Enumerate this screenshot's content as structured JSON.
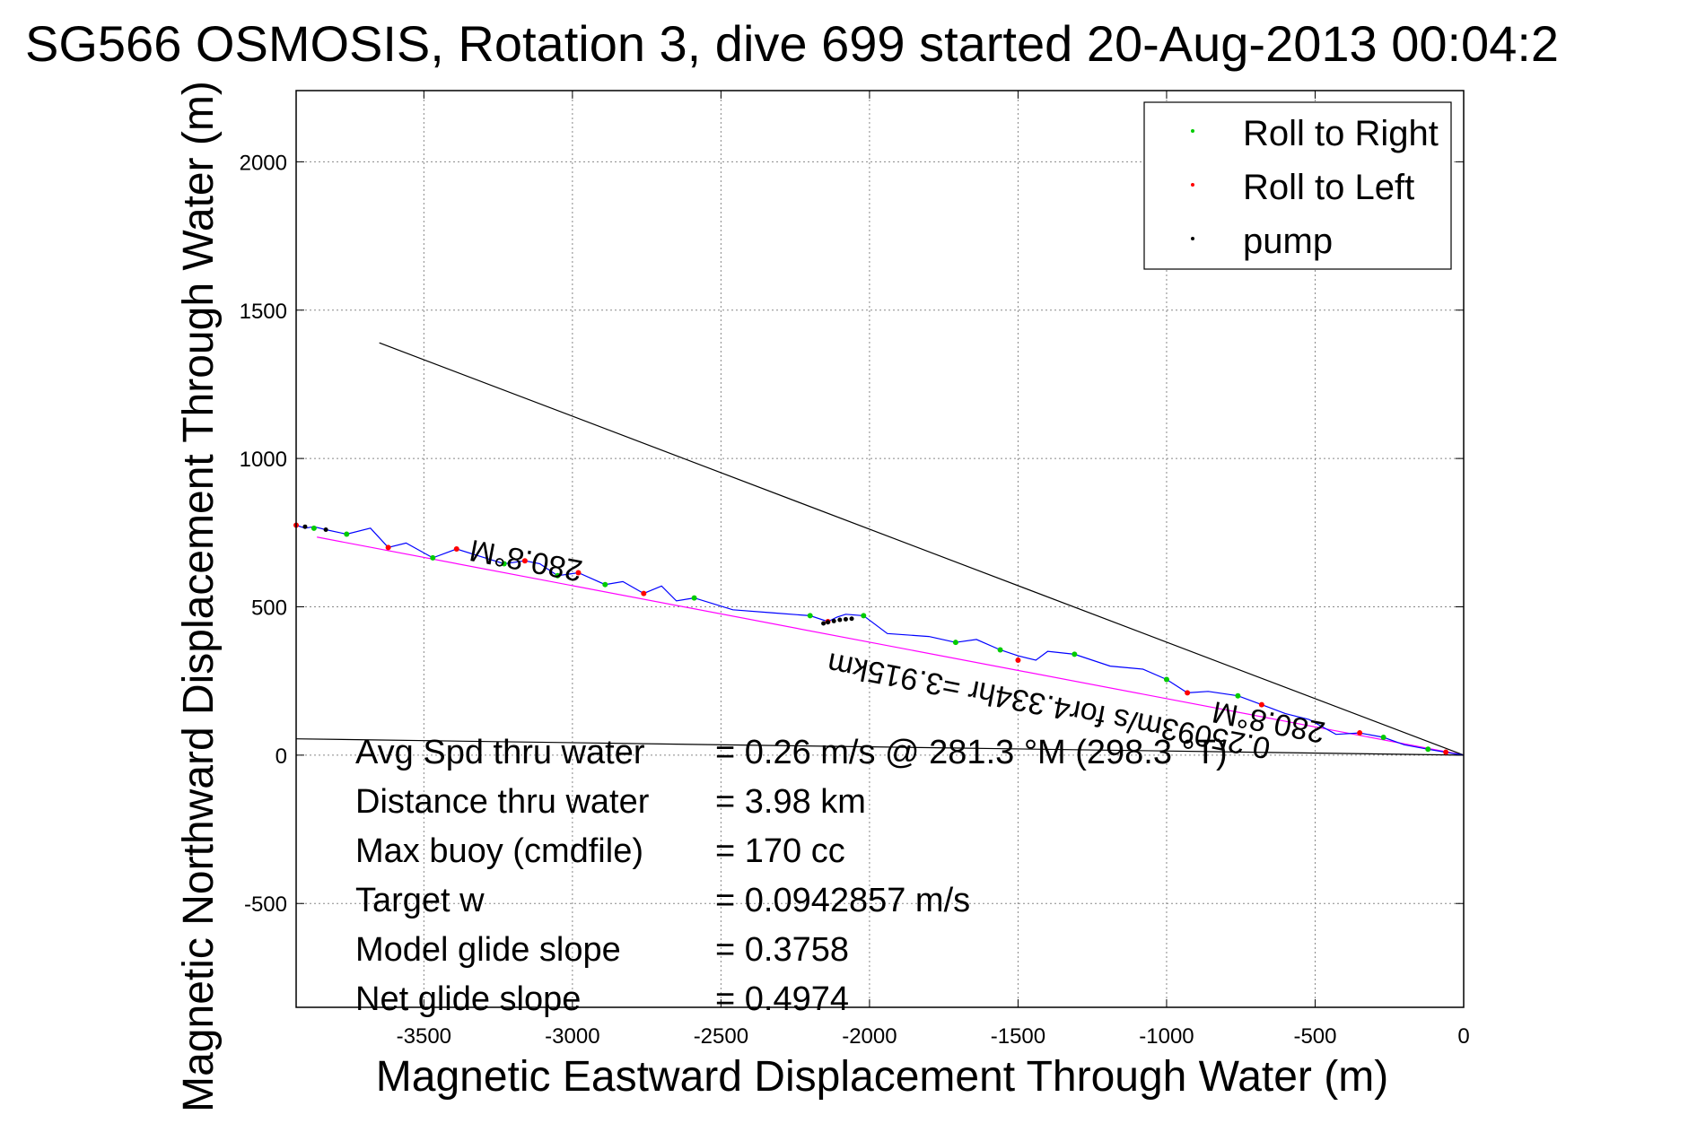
{
  "chart_data": {
    "type": "line",
    "title": "SG566 OSMOSIS, Rotation 3, dive 699 started 20-Aug-2013 00:04:2",
    "xlabel": "Magnetic Eastward Displacement Through Water (m)",
    "ylabel": "Magnetic Northward Displacement Through Water (m)",
    "xlim": [
      -3930,
      0
    ],
    "ylim": [
      -850,
      2240
    ],
    "xticks": [
      -3500,
      -3000,
      -2500,
      -2000,
      -1500,
      -1000,
      -500,
      0
    ],
    "xtick_labels": [
      "-3500",
      "-3000",
      "-2500",
      "-2000",
      "-1500",
      "-1000",
      "-500",
      "0"
    ],
    "yticks": [
      -500,
      0,
      500,
      1000,
      1500,
      2000
    ],
    "ytick_labels": [
      "-500",
      "0",
      "500",
      "1000",
      "1500",
      "2000"
    ],
    "grid": true,
    "legend_position": "top-right",
    "legend": [
      {
        "label": "Roll to Right",
        "color": "#00cc00"
      },
      {
        "label": "Roll to Left",
        "color": "#ff0000"
      },
      {
        "label": "pump",
        "color": "#000000"
      }
    ],
    "colors": {
      "track": "#0000ff",
      "net_heading_line": "#ff00ff",
      "reference_lines": "#000000",
      "roll_right": "#00cc00",
      "roll_left": "#ff0000",
      "pump": "#000000"
    },
    "series": [
      {
        "name": "track",
        "x": [
          0,
          -60,
          -120,
          -200,
          -270,
          -350,
          -430,
          -520,
          -600,
          -680,
          -760,
          -860,
          -930,
          -1000,
          -1080,
          -1190,
          -1310,
          -1400,
          -1440,
          -1500,
          -1560,
          -1640,
          -1710,
          -1800,
          -1940,
          -2020,
          -2080,
          -2110,
          -2140,
          -2200,
          -2330,
          -2460,
          -2590,
          -2650,
          -2700,
          -2760,
          -2830,
          -2890,
          -2980,
          -3050,
          -3110,
          -3160,
          -3230,
          -3310,
          -3390,
          -3470,
          -3560,
          -3620,
          -3680,
          -3760,
          -3830,
          -3870,
          -3900,
          -3930
        ],
        "y": [
          0,
          10,
          20,
          35,
          60,
          75,
          70,
          120,
          140,
          170,
          200,
          215,
          210,
          255,
          290,
          300,
          340,
          350,
          320,
          335,
          355,
          390,
          380,
          400,
          410,
          470,
          475,
          465,
          450,
          470,
          480,
          490,
          530,
          520,
          570,
          545,
          585,
          575,
          615,
          605,
          645,
          655,
          645,
          670,
          695,
          665,
          715,
          700,
          765,
          745,
          760,
          770,
          765,
          775
        ]
      },
      {
        "name": "Roll to Right",
        "x": [
          -120,
          -270,
          -760,
          -1000,
          -1310,
          -1560,
          -1710,
          -2020,
          -2200,
          -2590,
          -2890,
          -3050,
          -3230,
          -3470,
          -3760,
          -3870
        ],
        "y": [
          20,
          60,
          200,
          255,
          340,
          355,
          380,
          470,
          470,
          530,
          575,
          605,
          645,
          665,
          745,
          765
        ]
      },
      {
        "name": "Roll to Left",
        "x": [
          -60,
          -350,
          -680,
          -930,
          -1500,
          -2140,
          -2760,
          -2980,
          -3160,
          -3390,
          -3620,
          -3930
        ],
        "y": [
          10,
          75,
          170,
          210,
          320,
          450,
          545,
          615,
          655,
          695,
          700,
          775
        ]
      },
      {
        "name": "pump",
        "x": [
          -2060,
          -2080,
          -2100,
          -2120,
          -2140,
          -2155,
          -3830,
          -3900
        ],
        "y": [
          460,
          458,
          456,
          452,
          448,
          444,
          760,
          770
        ]
      }
    ],
    "reference_lines": [
      {
        "name": "net-heading-line",
        "x": [
          0,
          -3860
        ],
        "y": [
          0,
          735
        ]
      },
      {
        "name": "glide-direction-line",
        "x": [
          0,
          -3650
        ],
        "y": [
          0,
          1390
        ]
      },
      {
        "name": "average-direction-line",
        "x": [
          0,
          -3930
        ],
        "y": [
          0,
          55
        ]
      }
    ],
    "annotations": [
      {
        "text": "280.8°M",
        "x": -3150,
        "y": 690,
        "angle": 191
      },
      {
        "text": "0.25093m/s for4.334hr =3.915km",
        "x": -1390,
        "y": 200,
        "angle": 191
      },
      {
        "text": "280.8°M",
        "x": -650,
        "y": 145,
        "angle": 191
      }
    ],
    "stats": [
      {
        "label": "Avg Spd thru water",
        "value": "=  0.26 m/s @ 281.3  °M (298.3  °T)"
      },
      {
        "label": "Distance thru water",
        "value": "=  3.98 km"
      },
      {
        "label": "Max buoy (cmdfile)",
        "value": "= 170 cc"
      },
      {
        "label": "Target w",
        "value": "= 0.0942857 m/s"
      },
      {
        "label": "Model glide slope",
        "value": "= 0.3758"
      },
      {
        "label": "Net glide slope",
        "value": "= 0.4974"
      }
    ]
  }
}
